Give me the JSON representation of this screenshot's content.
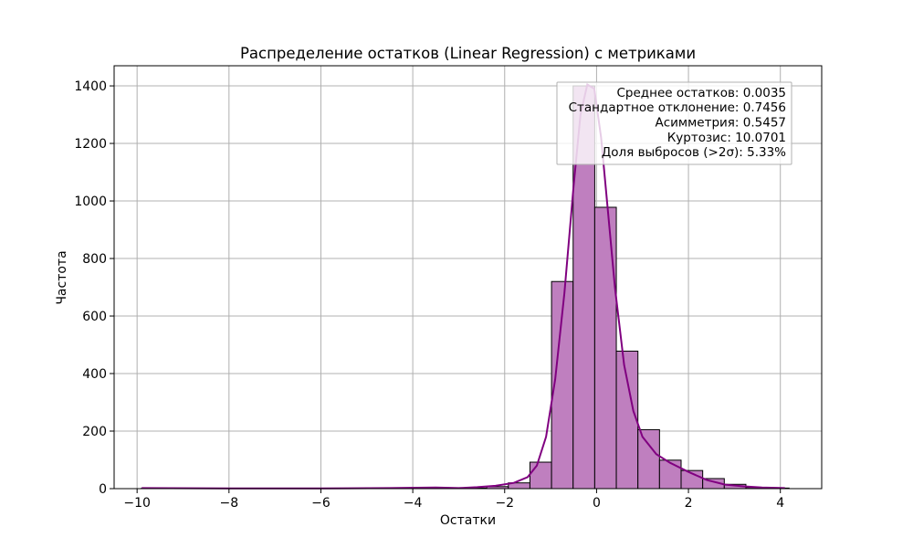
{
  "chart_data": {
    "type": "bar",
    "title": "Распределение остатков (Linear Regression) с метриками",
    "xlabel": "Остатки",
    "ylabel": "Частота",
    "xlim": [
      -10.5,
      4.9
    ],
    "ylim": [
      0,
      1470
    ],
    "grid": true,
    "bar_color": "#bf7fbf",
    "bar_edge_color": "#000000",
    "kde_color": "#800080",
    "x_ticks": [
      -10,
      -8,
      -6,
      -4,
      -2,
      0,
      2,
      4
    ],
    "x_tick_labels": [
      "−10",
      "−8",
      "−6",
      "−4",
      "−2",
      "0",
      "2",
      "4"
    ],
    "y_ticks": [
      0,
      200,
      400,
      600,
      800,
      1000,
      1200,
      1400
    ],
    "y_tick_labels": [
      "0",
      "200",
      "400",
      "600",
      "800",
      "1000",
      "1200",
      "1400"
    ],
    "bins": [
      {
        "x0": -9.91,
        "x1": -9.44,
        "count": 1
      },
      {
        "x0": -9.44,
        "x1": -8.97,
        "count": 0
      },
      {
        "x0": -8.97,
        "x1": -8.5,
        "count": 0
      },
      {
        "x0": -8.5,
        "x1": -8.03,
        "count": 0
      },
      {
        "x0": -8.03,
        "x1": -7.56,
        "count": 0
      },
      {
        "x0": -7.56,
        "x1": -7.09,
        "count": 0
      },
      {
        "x0": -7.09,
        "x1": -6.62,
        "count": 0
      },
      {
        "x0": -6.62,
        "x1": -6.15,
        "count": 0
      },
      {
        "x0": -6.15,
        "x1": -5.68,
        "count": 0
      },
      {
        "x0": -5.68,
        "x1": -5.21,
        "count": 0
      },
      {
        "x0": -5.21,
        "x1": -4.74,
        "count": 0
      },
      {
        "x0": -4.74,
        "x1": -4.27,
        "count": 0
      },
      {
        "x0": -4.27,
        "x1": -3.8,
        "count": 0
      },
      {
        "x0": -3.8,
        "x1": -3.33,
        "count": 1
      },
      {
        "x0": -3.33,
        "x1": -2.86,
        "count": 0
      },
      {
        "x0": -2.86,
        "x1": -2.39,
        "count": 2
      },
      {
        "x0": -2.39,
        "x1": -1.92,
        "count": 7
      },
      {
        "x0": -1.92,
        "x1": -1.45,
        "count": 20
      },
      {
        "x0": -1.45,
        "x1": -0.98,
        "count": 92
      },
      {
        "x0": -0.98,
        "x1": -0.51,
        "count": 720
      },
      {
        "x0": -0.51,
        "x1": -0.04,
        "count": 1400
      },
      {
        "x0": -0.04,
        "x1": 0.43,
        "count": 978
      },
      {
        "x0": 0.43,
        "x1": 0.9,
        "count": 478
      },
      {
        "x0": 0.9,
        "x1": 1.37,
        "count": 205
      },
      {
        "x0": 1.37,
        "x1": 1.84,
        "count": 99
      },
      {
        "x0": 1.84,
        "x1": 2.31,
        "count": 63
      },
      {
        "x0": 2.31,
        "x1": 2.78,
        "count": 35
      },
      {
        "x0": 2.78,
        "x1": 3.25,
        "count": 15
      },
      {
        "x0": 3.25,
        "x1": 3.72,
        "count": 4
      },
      {
        "x0": 3.72,
        "x1": 4.19,
        "count": 2
      }
    ],
    "kde": {
      "x": [
        -9.9,
        -8,
        -6,
        -4.5,
        -3.5,
        -3,
        -2.6,
        -2.2,
        -1.8,
        -1.5,
        -1.3,
        -1.1,
        -0.9,
        -0.7,
        -0.5,
        -0.35,
        -0.2,
        -0.05,
        0.1,
        0.25,
        0.4,
        0.6,
        0.8,
        1.0,
        1.3,
        1.6,
        2.0,
        2.4,
        2.8,
        3.2,
        3.6,
        4.1
      ],
      "y": [
        2,
        1,
        1,
        2,
        4,
        2,
        5,
        10,
        20,
        40,
        80,
        180,
        380,
        680,
        1050,
        1300,
        1405,
        1390,
        1220,
        960,
        700,
        430,
        270,
        180,
        120,
        90,
        58,
        30,
        14,
        8,
        4,
        2
      ]
    },
    "metrics": [
      "Среднее остатков: 0.0035",
      "Стандартное отклонение: 0.7456",
      "Асимметрия: 0.5457",
      "Куртозис: 10.0701",
      "Доля выбросов (>2σ): 5.33%"
    ],
    "metrics_position": "top-right"
  }
}
